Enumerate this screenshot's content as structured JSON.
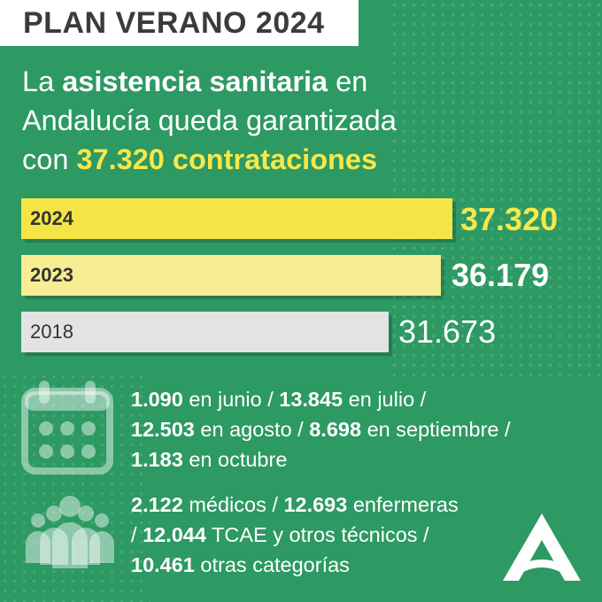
{
  "header": {
    "badge": "PLAN VERANO 2024"
  },
  "headline": {
    "line1_a": "La ",
    "line1_b": "asistencia sanitaria",
    "line1_c": " en",
    "line2": "Andalucía queda garantizada",
    "line3_a": "con ",
    "line3_b": "37.320 contrataciones"
  },
  "bars": [
    {
      "year": "2024",
      "value": "37.320",
      "number": 37320,
      "color": "#f4e547"
    },
    {
      "year": "2023",
      "value": "36.179",
      "number": 36179,
      "color": "#f7ed92"
    },
    {
      "year": "2018",
      "value": "31.673",
      "number": 31673,
      "color": "#e3e3e3"
    }
  ],
  "months": {
    "icon": "calendar-icon",
    "m1_num": "1.090",
    "m1_txt": " en junio / ",
    "m2_num": "13.845",
    "m2_txt": " en julio /",
    "m3_num": "12.503",
    "m3_txt": " en agosto / ",
    "m4_num": "8.698",
    "m4_txt": " en septiembre /",
    "m5_num": "1.183",
    "m5_txt": " en octubre"
  },
  "categories": {
    "icon": "people-group-icon",
    "c1_num": "2.122",
    "c1_txt": " médicos / ",
    "c2_num": "12.693",
    "c2_txt": " enfermeras",
    "c3_pre": "/ ",
    "c3_num": "12.044",
    "c3_txt": " TCAE y otros técnicos /",
    "c4_num": "10.461",
    "c4_txt": " otras categorías"
  },
  "logo": {
    "icon": "junta-andalucia-logo-icon"
  },
  "colors": {
    "background": "#2d9963",
    "accent_yellow": "#f6e84a",
    "badge_text": "#3b3b3b"
  }
}
